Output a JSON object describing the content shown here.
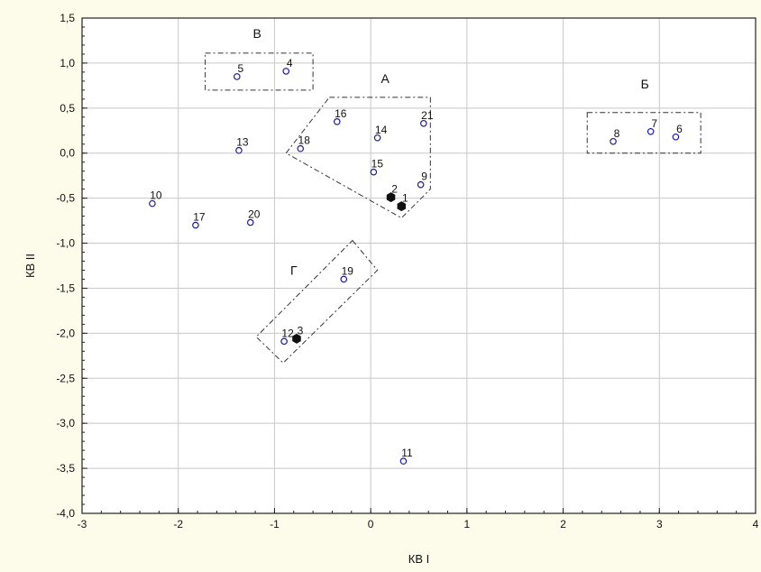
{
  "chart_data": {
    "type": "scatter",
    "title": "",
    "xlabel": "КВ I",
    "ylabel": "КВ II",
    "xlim": [
      -3,
      4
    ],
    "ylim": [
      -4.0,
      1.5
    ],
    "x_ticks": [
      -3,
      -2,
      -1,
      0,
      1,
      2,
      3,
      4
    ],
    "x_tick_labels": [
      "-3",
      "-2",
      "-1",
      "0",
      "1",
      "2",
      "3",
      "4"
    ],
    "y_ticks": [
      1.5,
      1.0,
      0.5,
      0.0,
      -0.5,
      -1.0,
      -1.5,
      -2.0,
      -2.5,
      -3.0,
      -3.5,
      -4.0
    ],
    "y_tick_labels": [
      "1,5",
      "1,0",
      "0,5",
      "0,0",
      "-0,5",
      "-1,0",
      "-1,5",
      "-2,0",
      "-2,5",
      "-3,0",
      "-3,5",
      "-4,0"
    ],
    "grid": true,
    "colors": {
      "open_marker": "#1a1aa6",
      "filled_marker": "#111111",
      "grid": "#c8c8c8",
      "plot_bg": "#ffffff",
      "page_bg": "#fdfbe9"
    },
    "points": [
      {
        "label": "1",
        "x": 0.32,
        "y": -0.59,
        "filled": true
      },
      {
        "label": "2",
        "x": 0.21,
        "y": -0.49,
        "filled": true
      },
      {
        "label": "3",
        "x": -0.77,
        "y": -2.06,
        "filled": true
      },
      {
        "label": "4",
        "x": -0.88,
        "y": 0.91,
        "filled": false
      },
      {
        "label": "5",
        "x": -1.39,
        "y": 0.85,
        "filled": false
      },
      {
        "label": "6",
        "x": 3.17,
        "y": 0.18,
        "filled": false
      },
      {
        "label": "7",
        "x": 2.91,
        "y": 0.24,
        "filled": false
      },
      {
        "label": "8",
        "x": 2.52,
        "y": 0.13,
        "filled": false
      },
      {
        "label": "9",
        "x": 0.52,
        "y": -0.35,
        "filled": false
      },
      {
        "label": "10",
        "x": -2.27,
        "y": -0.56,
        "filled": false
      },
      {
        "label": "11",
        "x": 0.34,
        "y": -3.42,
        "filled": false
      },
      {
        "label": "12",
        "x": -0.9,
        "y": -2.09,
        "filled": false
      },
      {
        "label": "13",
        "x": -1.37,
        "y": 0.03,
        "filled": false
      },
      {
        "label": "14",
        "x": 0.07,
        "y": 0.17,
        "filled": false
      },
      {
        "label": "15",
        "x": 0.03,
        "y": -0.21,
        "filled": false
      },
      {
        "label": "16",
        "x": -0.35,
        "y": 0.35,
        "filled": false
      },
      {
        "label": "17",
        "x": -1.82,
        "y": -0.8,
        "filled": false
      },
      {
        "label": "18",
        "x": -0.73,
        "y": 0.05,
        "filled": false
      },
      {
        "label": "19",
        "x": -0.28,
        "y": -1.4,
        "filled": false
      },
      {
        "label": "20",
        "x": -1.25,
        "y": -0.77,
        "filled": false
      },
      {
        "label": "21",
        "x": 0.55,
        "y": 0.33,
        "filled": false
      }
    ],
    "groups": [
      {
        "label": "А",
        "polygon": [
          [
            -0.43,
            0.62
          ],
          [
            0.62,
            0.62
          ],
          [
            0.62,
            -0.4
          ],
          [
            0.32,
            -0.72
          ],
          [
            -0.88,
            0.0
          ]
        ]
      },
      {
        "label": "Б",
        "polygon": [
          [
            2.25,
            0.45
          ],
          [
            3.43,
            0.45
          ],
          [
            3.43,
            0.0
          ],
          [
            2.25,
            0.0
          ]
        ]
      },
      {
        "label": "В",
        "polygon": [
          [
            -1.72,
            1.11
          ],
          [
            -0.6,
            1.11
          ],
          [
            -0.6,
            0.7
          ],
          [
            -1.72,
            0.7
          ]
        ]
      },
      {
        "label": "Г",
        "polygon": [
          [
            -0.19,
            -0.97
          ],
          [
            0.07,
            -1.3
          ],
          [
            -0.91,
            -2.33
          ],
          [
            -1.19,
            -2.04
          ]
        ]
      }
    ]
  }
}
